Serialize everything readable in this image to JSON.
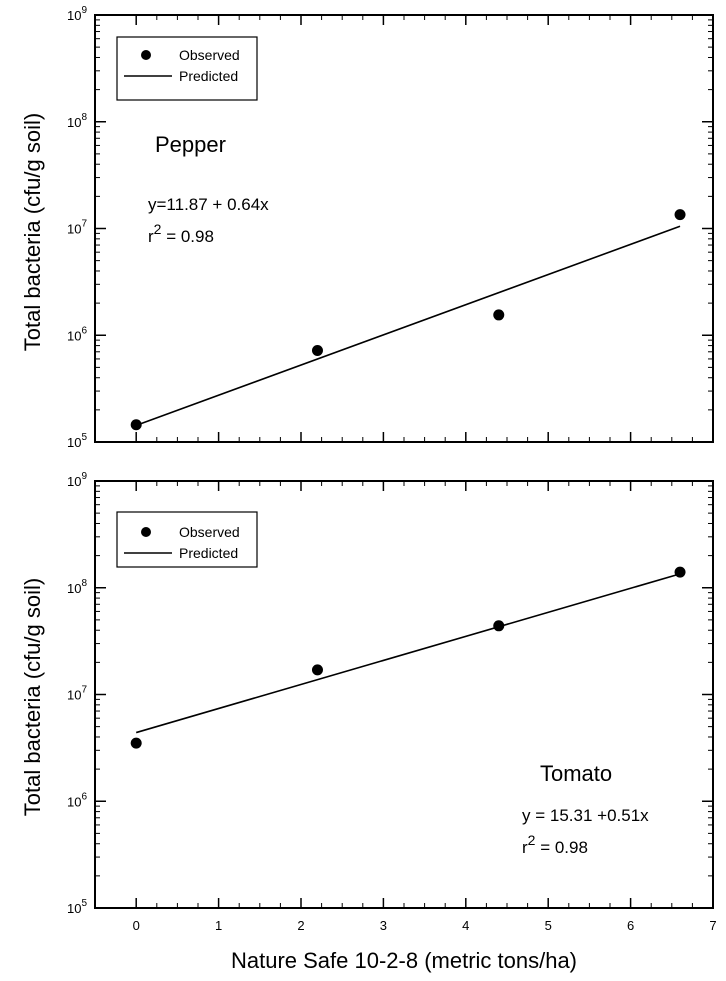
{
  "chart_data": [
    {
      "type": "scatter",
      "panel": "Pepper",
      "ylabel": "Total bacteria (cfu/g soil)",
      "yscale": "log",
      "ylim": [
        100000,
        1000000000
      ],
      "yticks": [
        {
          "value": 100000,
          "base": "10",
          "exp": "5"
        },
        {
          "value": 1000000,
          "base": "10",
          "exp": "6"
        },
        {
          "value": 10000000,
          "base": "10",
          "exp": "7"
        },
        {
          "value": 100000000,
          "base": "10",
          "exp": "8"
        },
        {
          "value": 1000000000,
          "base": "10",
          "exp": "9"
        }
      ],
      "xlim": [
        -0.5,
        7
      ],
      "series": [
        {
          "name": "Observed",
          "kind": "points",
          "x": [
            0,
            2.2,
            4.4,
            6.6
          ],
          "y": [
            145000,
            720000,
            1550000,
            13500000
          ]
        },
        {
          "name": "Predicted",
          "kind": "line",
          "x": [
            0,
            6.6
          ],
          "y": [
            143000,
            10500000
          ]
        }
      ],
      "legend": {
        "position": "top-left",
        "observed": "Observed",
        "predicted": "Predicted"
      },
      "label": "Pepper",
      "equation": "y=11.87 + 0.64x",
      "r2_prefix": "r",
      "r2_exp": "2",
      "r2_value": " = 0.98"
    },
    {
      "type": "scatter",
      "panel": "Tomato",
      "xlabel": "Nature Safe 10-2-8 (metric tons/ha)",
      "ylabel": "Total bacteria (cfu/g soil)",
      "yscale": "log",
      "ylim": [
        100000,
        1000000000
      ],
      "yticks": [
        {
          "value": 100000,
          "base": "10",
          "exp": "5"
        },
        {
          "value": 1000000,
          "base": "10",
          "exp": "6"
        },
        {
          "value": 10000000,
          "base": "10",
          "exp": "7"
        },
        {
          "value": 100000000,
          "base": "10",
          "exp": "8"
        },
        {
          "value": 1000000000,
          "base": "10",
          "exp": "9"
        }
      ],
      "xlim": [
        -0.5,
        7
      ],
      "xticks": [
        {
          "value": 0,
          "label": "0"
        },
        {
          "value": 1,
          "label": "1"
        },
        {
          "value": 2,
          "label": "2"
        },
        {
          "value": 3,
          "label": "3"
        },
        {
          "value": 4,
          "label": "4"
        },
        {
          "value": 5,
          "label": "5"
        },
        {
          "value": 6,
          "label": "6"
        },
        {
          "value": 7,
          "label": "7"
        }
      ],
      "series": [
        {
          "name": "Observed",
          "kind": "points",
          "x": [
            0,
            2.2,
            4.4,
            6.6
          ],
          "y": [
            3500000,
            17000000,
            44000000,
            140000000
          ]
        },
        {
          "name": "Predicted",
          "kind": "line",
          "x": [
            0,
            6.6
          ],
          "y": [
            4400000,
            135000000
          ]
        }
      ],
      "legend": {
        "position": "top-left",
        "observed": "Observed",
        "predicted": "Predicted"
      },
      "label": "Tomato",
      "equation": "y = 15.31 +0.51x",
      "r2_prefix": "r",
      "r2_exp": "2",
      "r2_value": " = 0.98"
    }
  ]
}
